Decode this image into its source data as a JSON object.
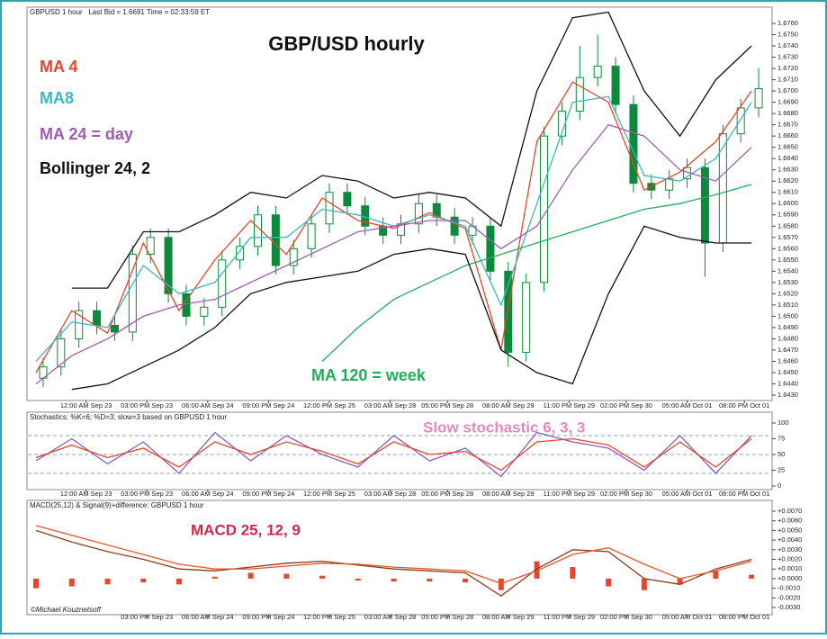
{
  "chart_data": [
    {
      "type": "candlestick",
      "header": "GBPUSD 1 hour   Last Bid = 1.6691 Time = 02:33:59 ET",
      "title": "GBP/USD hourly",
      "xlim": [
        0,
        205
      ],
      "xticks": [
        {
          "value": 14,
          "label": "12:00 AM Sep 23"
        },
        {
          "value": 31,
          "label": "03:00 PM Sep 23"
        },
        {
          "value": 48,
          "label": "06:00 AM Sep 24"
        },
        {
          "value": 65,
          "label": "09:00 PM Sep 24"
        },
        {
          "value": 82,
          "label": "12:00 PM Sep 25"
        },
        {
          "value": 99,
          "label": "03:00 AM Sep 28"
        },
        {
          "value": 115,
          "label": "05:00 PM Sep 28"
        },
        {
          "value": 132,
          "label": "08:00 AM Sep 29"
        },
        {
          "value": 149,
          "label": "11:00 PM Sep 29"
        },
        {
          "value": 165,
          "label": "02:00 PM Sep 30"
        },
        {
          "value": 182,
          "label": "05:00 AM Oct 01"
        },
        {
          "value": 198,
          "label": "08:00 PM Oct 01"
        }
      ],
      "ylim": [
        1.643,
        1.676
      ],
      "yticks": [
        {
          "value": 1.643,
          "label": "1.6430"
        },
        {
          "value": 1.644,
          "label": "1.6440"
        },
        {
          "value": 1.645,
          "label": "1.6450"
        },
        {
          "value": 1.646,
          "label": "1.6460"
        },
        {
          "value": 1.647,
          "label": "1.6470"
        },
        {
          "value": 1.648,
          "label": "1.6480"
        },
        {
          "value": 1.649,
          "label": "1.6490"
        },
        {
          "value": 1.65,
          "label": "1.6500"
        },
        {
          "value": 1.651,
          "label": "1.6510"
        },
        {
          "value": 1.652,
          "label": "1.6520"
        },
        {
          "value": 1.653,
          "label": "1.6530"
        },
        {
          "value": 1.654,
          "label": "1.6540"
        },
        {
          "value": 1.655,
          "label": "1.6550"
        },
        {
          "value": 1.656,
          "label": "1.6560"
        },
        {
          "value": 1.657,
          "label": "1.6570"
        },
        {
          "value": 1.658,
          "label": "1.6580"
        },
        {
          "value": 1.659,
          "label": "1.6590"
        },
        {
          "value": 1.66,
          "label": "1.6600"
        },
        {
          "value": 1.661,
          "label": "1.6610"
        },
        {
          "value": 1.662,
          "label": "1.6620"
        },
        {
          "value": 1.663,
          "label": "1.6630"
        },
        {
          "value": 1.664,
          "label": "1.6640"
        },
        {
          "value": 1.665,
          "label": "1.6650"
        },
        {
          "value": 1.666,
          "label": "1.6660"
        },
        {
          "value": 1.667,
          "label": "1.6670"
        },
        {
          "value": 1.668,
          "label": "1.6680"
        },
        {
          "value": 1.669,
          "label": "1.6690"
        },
        {
          "value": 1.67,
          "label": "1.6700"
        },
        {
          "value": 1.671,
          "label": "1.6710"
        },
        {
          "value": 1.672,
          "label": "1.6720"
        },
        {
          "value": 1.673,
          "label": "1.6730"
        },
        {
          "value": 1.674,
          "label": "1.6740"
        },
        {
          "value": 1.675,
          "label": "1.6750"
        },
        {
          "value": 1.676,
          "label": "1.6760"
        }
      ],
      "candles": {
        "up_color": "#ffffff",
        "down_color": "#0a8a3a",
        "stroke": "#0a8a3a",
        "x": [
          2,
          7,
          12,
          17,
          22,
          27,
          32,
          37,
          42,
          47,
          52,
          57,
          62,
          67,
          72,
          77,
          82,
          87,
          92,
          97,
          102,
          107,
          112,
          117,
          122,
          127,
          132,
          137,
          142,
          147,
          152,
          157,
          162,
          167,
          172,
          177,
          182,
          187,
          192,
          197,
          202
        ],
        "open": [
          1.6445,
          1.6455,
          1.648,
          1.6505,
          1.6492,
          1.6486,
          1.6555,
          1.657,
          1.652,
          1.65,
          1.6508,
          1.655,
          1.6562,
          1.659,
          1.6545,
          1.656,
          1.6582,
          1.661,
          1.6598,
          1.658,
          1.6572,
          1.6582,
          1.66,
          1.6588,
          1.6572,
          1.658,
          1.654,
          1.6468,
          1.653,
          1.666,
          1.6682,
          1.6712,
          1.6722,
          1.6688,
          1.6618,
          1.6612,
          1.6622,
          1.6632,
          1.6565,
          1.6662,
          1.6685
        ],
        "high": [
          1.6463,
          1.6488,
          1.6513,
          1.6513,
          1.65,
          1.6563,
          1.6578,
          1.6578,
          1.6528,
          1.6516,
          1.6558,
          1.657,
          1.6598,
          1.6598,
          1.6568,
          1.659,
          1.6618,
          1.6618,
          1.6606,
          1.6588,
          1.659,
          1.6608,
          1.6608,
          1.6596,
          1.6588,
          1.6588,
          1.6548,
          1.6538,
          1.6668,
          1.669,
          1.674,
          1.675,
          1.673,
          1.6696,
          1.6626,
          1.663,
          1.664,
          1.664,
          1.667,
          1.6693,
          1.672
        ],
        "low": [
          1.6437,
          1.6447,
          1.6472,
          1.6484,
          1.6478,
          1.6478,
          1.6547,
          1.6512,
          1.6492,
          1.6492,
          1.65,
          1.6542,
          1.6554,
          1.6537,
          1.6537,
          1.6552,
          1.6574,
          1.659,
          1.6572,
          1.6564,
          1.6564,
          1.6574,
          1.658,
          1.6564,
          1.6564,
          1.6532,
          1.6455,
          1.646,
          1.6522,
          1.6652,
          1.6674,
          1.6704,
          1.668,
          1.661,
          1.6604,
          1.6604,
          1.6614,
          1.6535,
          1.6557,
          1.6654,
          1.6677
        ],
        "close": [
          1.6455,
          1.648,
          1.6505,
          1.6492,
          1.6486,
          1.6555,
          1.657,
          1.652,
          1.65,
          1.6508,
          1.655,
          1.6562,
          1.659,
          1.6545,
          1.656,
          1.6582,
          1.661,
          1.6598,
          1.658,
          1.6572,
          1.6582,
          1.66,
          1.6588,
          1.6572,
          1.658,
          1.654,
          1.6468,
          1.653,
          1.666,
          1.6682,
          1.6712,
          1.6722,
          1.6688,
          1.6618,
          1.6612,
          1.6622,
          1.6632,
          1.6565,
          1.6662,
          1.6685,
          1.6702
        ]
      },
      "x": [
        0,
        10,
        20,
        30,
        40,
        50,
        60,
        70,
        80,
        90,
        100,
        110,
        120,
        130,
        140,
        150,
        160,
        170,
        180,
        190,
        200
      ],
      "series": [
        {
          "name": "MA 4",
          "color": "#e8452a",
          "values": [
            1.645,
            1.6505,
            1.6485,
            1.6565,
            1.6505,
            1.655,
            1.6585,
            1.6555,
            1.6605,
            1.6585,
            1.6578,
            1.6592,
            1.6578,
            1.647,
            1.6655,
            1.6708,
            1.669,
            1.6612,
            1.6628,
            1.6655,
            1.67
          ]
        },
        {
          "name": "MA8",
          "color": "#3cb8c0",
          "values": [
            1.646,
            1.6495,
            1.649,
            1.6545,
            1.652,
            1.653,
            1.657,
            1.657,
            1.6595,
            1.659,
            1.658,
            1.659,
            1.658,
            1.651,
            1.66,
            1.669,
            1.6695,
            1.6625,
            1.662,
            1.664,
            1.669
          ]
        },
        {
          "name": "MA 24 =  day",
          "color": "#a05cb0",
          "values": [
            1.644,
            1.6465,
            1.648,
            1.65,
            1.651,
            1.6515,
            1.653,
            1.6545,
            1.656,
            1.6575,
            1.658,
            1.6585,
            1.6585,
            1.656,
            1.658,
            1.663,
            1.667,
            1.666,
            1.663,
            1.662,
            1.665
          ]
        },
        {
          "name": "MA 120 = week",
          "color": "#1fae5a",
          "values": [
            null,
            null,
            null,
            null,
            null,
            null,
            null,
            null,
            1.646,
            1.649,
            1.6515,
            1.653,
            1.6545,
            1.6555,
            1.6565,
            1.6575,
            1.6585,
            1.6595,
            1.66,
            1.6608,
            1.6617
          ]
        },
        {
          "name": "Bollinger 24, 2",
          "color": "#111111",
          "upper": [
            null,
            1.6525,
            1.6525,
            1.6575,
            1.6575,
            1.659,
            1.661,
            1.6605,
            1.6625,
            1.662,
            1.6605,
            1.661,
            1.6605,
            1.658,
            1.67,
            1.6765,
            1.677,
            1.67,
            1.666,
            1.671,
            1.674
          ],
          "lower": [
            null,
            1.6435,
            1.644,
            1.6455,
            1.647,
            1.649,
            1.652,
            1.653,
            1.6535,
            1.654,
            1.6555,
            1.656,
            1.6555,
            1.647,
            1.645,
            1.644,
            1.652,
            1.658,
            1.657,
            1.6565,
            1.6565
          ]
        }
      ]
    },
    {
      "type": "line",
      "header": "Stochastics: %K=6; %D=3; slow=3 based on GBPUSD 1 hour",
      "annotation": "Slow stochastic 6, 3, 3",
      "annotation_color": "#e58ab8",
      "xlim": [
        0,
        205
      ],
      "xticks": [
        {
          "value": 14,
          "label": "12:00 AM Sep 23"
        },
        {
          "value": 31,
          "label": "03:00 PM Sep 23"
        },
        {
          "value": 48,
          "label": "06:00 AM Sep 24"
        },
        {
          "value": 65,
          "label": "09:00 PM Sep 24"
        },
        {
          "value": 82,
          "label": "12:00 PM Sep 25"
        },
        {
          "value": 99,
          "label": "03:00 AM Sep 28"
        },
        {
          "value": 115,
          "label": "05:00 PM Sep 28"
        },
        {
          "value": 132,
          "label": "08:00 AM Sep 29"
        },
        {
          "value": 149,
          "label": "11:00 PM Sep 29"
        },
        {
          "value": 165,
          "label": "02:00 PM Sep 30"
        },
        {
          "value": 182,
          "label": "05:00 AM Oct 01"
        },
        {
          "value": 198,
          "label": "08:00 PM Oct 01"
        }
      ],
      "ylim": [
        0,
        100
      ],
      "yticks": [
        0,
        25,
        50,
        75,
        100
      ],
      "levels": [
        20,
        50,
        80
      ],
      "x": [
        0,
        10,
        20,
        30,
        40,
        50,
        60,
        70,
        80,
        90,
        100,
        110,
        120,
        130,
        140,
        150,
        160,
        170,
        180,
        190,
        200
      ],
      "series": [
        {
          "color": "#8a5cc0",
          "values": [
            40,
            75,
            35,
            70,
            20,
            85,
            40,
            80,
            50,
            30,
            80,
            40,
            60,
            15,
            85,
            70,
            60,
            25,
            80,
            20,
            80
          ]
        },
        {
          "color": "#e8452a",
          "values": [
            45,
            65,
            45,
            60,
            30,
            70,
            50,
            70,
            55,
            35,
            70,
            50,
            55,
            25,
            70,
            75,
            65,
            30,
            70,
            30,
            75
          ]
        }
      ]
    },
    {
      "type": "combo",
      "header": "MACD(25,12) & Signal(9)+difference: GBPUSD 1 hour",
      "annotation": "MACD 25, 12, 9",
      "annotation_color": "#d0284a",
      "credit": "©Michael Kouznetsoff",
      "xlim": [
        0,
        205
      ],
      "xticks": [
        {
          "value": 31,
          "label": "03:00 PM Sep 23"
        },
        {
          "value": 48,
          "label": "06:00 AM Sep 24"
        },
        {
          "value": 65,
          "label": "09:00 PM Sep 24"
        },
        {
          "value": 82,
          "label": "12:00 PM Sep 25"
        },
        {
          "value": 99,
          "label": "03:00 AM Sep 28"
        },
        {
          "value": 115,
          "label": "05:00 PM Sep 28"
        },
        {
          "value": 132,
          "label": "08:00 AM Sep 29"
        },
        {
          "value": 149,
          "label": "11:00 PM Sep 29"
        },
        {
          "value": 165,
          "label": "02:00 PM Sep 30"
        },
        {
          "value": 182,
          "label": "05:00 AM Oct 01"
        },
        {
          "value": 198,
          "label": "08:00 PM Oct 01"
        }
      ],
      "ylim": [
        -0.003,
        0.007
      ],
      "yticks": [
        {
          "value": 0.007,
          "label": "+0.0070"
        },
        {
          "value": 0.006,
          "label": "+0.0060"
        },
        {
          "value": 0.005,
          "label": "+0.0050"
        },
        {
          "value": 0.004,
          "label": "+0.0040"
        },
        {
          "value": 0.003,
          "label": "+0.0030"
        },
        {
          "value": 0.002,
          "label": "+0.0020"
        },
        {
          "value": 0.001,
          "label": "+0.0010"
        },
        {
          "value": 0,
          "label": "+0.0000"
        },
        {
          "value": -0.001,
          "label": "-0.0010"
        },
        {
          "value": -0.002,
          "label": "-0.0020"
        },
        {
          "value": -0.003,
          "label": "-0.0030"
        }
      ],
      "x": [
        0,
        10,
        20,
        30,
        40,
        50,
        60,
        70,
        80,
        90,
        100,
        110,
        120,
        130,
        140,
        150,
        160,
        170,
        180,
        190,
        200
      ],
      "series": [
        {
          "type": "bar",
          "color": "#e8452a",
          "values": [
            -0.001,
            -0.0008,
            -0.0006,
            -0.0004,
            -0.0006,
            0.0002,
            0.0006,
            0.0005,
            0.0003,
            -0.0002,
            -0.0003,
            -0.0003,
            -0.0004,
            -0.0012,
            0.0018,
            0.0012,
            -0.0008,
            -0.0012,
            -0.0006,
            0.0008,
            0.0004
          ]
        },
        {
          "color": "#8b3a1a",
          "values": [
            0.005,
            0.0038,
            0.0028,
            0.002,
            0.001,
            0.0008,
            0.0012,
            0.0016,
            0.0018,
            0.0014,
            0.001,
            0.0008,
            0.0006,
            -0.0018,
            0.001,
            0.003,
            0.0028,
            0,
            -0.0006,
            0.001,
            0.002
          ]
        },
        {
          "color": "#e8552a",
          "values": [
            0.0055,
            0.0045,
            0.0035,
            0.0025,
            0.0015,
            0.001,
            0.001,
            0.0013,
            0.0016,
            0.0015,
            0.0012,
            0.001,
            0.0008,
            -0.0005,
            0.0008,
            0.0025,
            0.0032,
            0.0015,
            0,
            0.0008,
            0.0018
          ]
        }
      ]
    }
  ]
}
